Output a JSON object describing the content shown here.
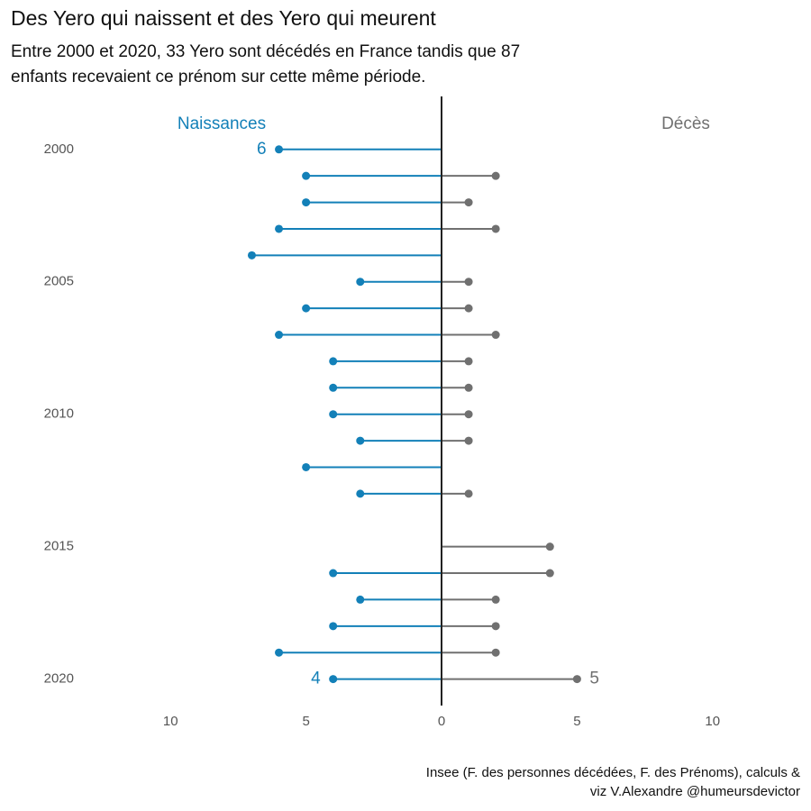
{
  "chart_data": {
    "type": "diverging-lollipop",
    "title": "Des Yero qui naissent et des Yero qui meurent",
    "subtitle": [
      "Entre 2000 et 2020, 33 Yero sont décédés en France tandis que 87",
      "enfants recevaient ce prénom sur cette même période."
    ],
    "caption": [
      "Insee (F. des personnes décédées, F. des Prénoms), calculs &",
      "viz V.Alexandre @humeursdevictor"
    ],
    "y": [
      2000,
      2001,
      2002,
      2003,
      2004,
      2005,
      2006,
      2007,
      2008,
      2009,
      2010,
      2011,
      2012,
      2013,
      2014,
      2015,
      2016,
      2017,
      2018,
      2019,
      2020
    ],
    "ylim": [
      1998,
      2021
    ],
    "yticks": [
      2000,
      2005,
      2010,
      2015,
      2020
    ],
    "xlim": [
      -13,
      13
    ],
    "xticks": [
      {
        "value": -10,
        "label": "10"
      },
      {
        "value": -5,
        "label": "5"
      },
      0,
      5,
      10
    ],
    "series": [
      {
        "name": "Naissances",
        "color": "#1380b8",
        "side": "left",
        "label_indices": [
          0,
          20
        ],
        "values": [
          6,
          5,
          5,
          6,
          7,
          3,
          5,
          6,
          4,
          4,
          4,
          3,
          5,
          3,
          null,
          null,
          4,
          3,
          4,
          6,
          4
        ]
      },
      {
        "name": "Décès",
        "color": "#707070",
        "side": "right",
        "label_indices": [
          20
        ],
        "values": [
          null,
          2,
          1,
          2,
          null,
          1,
          1,
          2,
          1,
          1,
          1,
          1,
          null,
          1,
          null,
          4,
          4,
          2,
          2,
          2,
          5
        ]
      }
    ]
  }
}
